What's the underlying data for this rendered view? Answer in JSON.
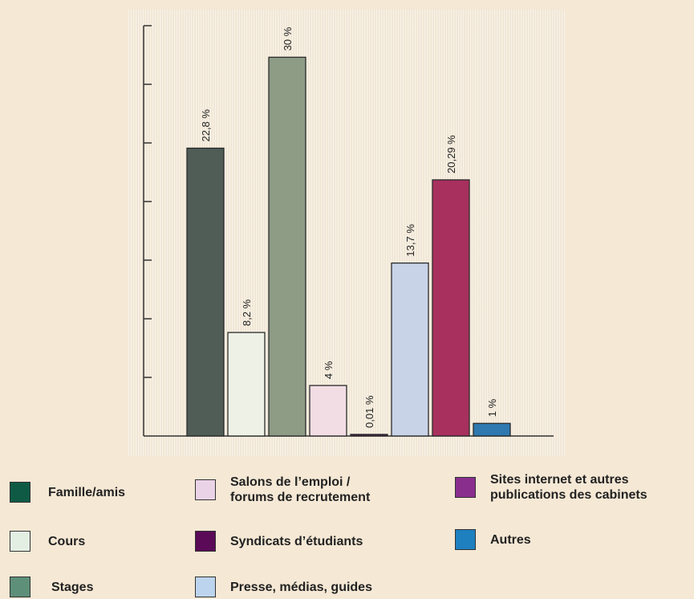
{
  "chart_data": {
    "type": "bar",
    "categories": [
      "Famille/amis",
      "Cours",
      "Stages",
      "Salons de l'emploi / forums de recrutement",
      "Syndicats d'étudiants",
      "Presse, médias, guides",
      "Sites internet et autres publications des cabinets",
      "Autres"
    ],
    "values": [
      22.8,
      8.2,
      30,
      4,
      0.01,
      13.7,
      20.29,
      1
    ],
    "data_labels": [
      "22,8 %",
      "8,2 %",
      "30 %",
      "4 %",
      "0,01 %",
      "13,7 %",
      "20,29 %",
      "1 %"
    ],
    "colors": [
      "#4f5d56",
      "#eef1e6",
      "#8e9c86",
      "#f2dde4",
      "#4b1848",
      "#c9d3e8",
      "#a8305e",
      "#2f78b0"
    ],
    "ylim": [
      0,
      32.5
    ],
    "y_ticks": 7,
    "title": "",
    "xlabel": "",
    "ylabel": "",
    "legend_placement": "bottom"
  },
  "legend": [
    {
      "label": "Famille/amis",
      "color": "#0f5a45"
    },
    {
      "label": "Salons de l’emploi /\nforums de recrutement",
      "color": "#ead3e6"
    },
    {
      "label": "Sites internet et autres\npublications des cabinets",
      "color": "#8a2e8e"
    },
    {
      "label": "Cours",
      "color": "#e4efe4"
    },
    {
      "label": "Syndicats d’étudiants",
      "color": "#5a0a56"
    },
    {
      "label": "Autres",
      "color": "#1f80c0"
    },
    {
      "label": "Stages",
      "color": "#5e8f78"
    },
    {
      "label": "Presse, médias, guides",
      "color": "#bcd4ee"
    }
  ]
}
